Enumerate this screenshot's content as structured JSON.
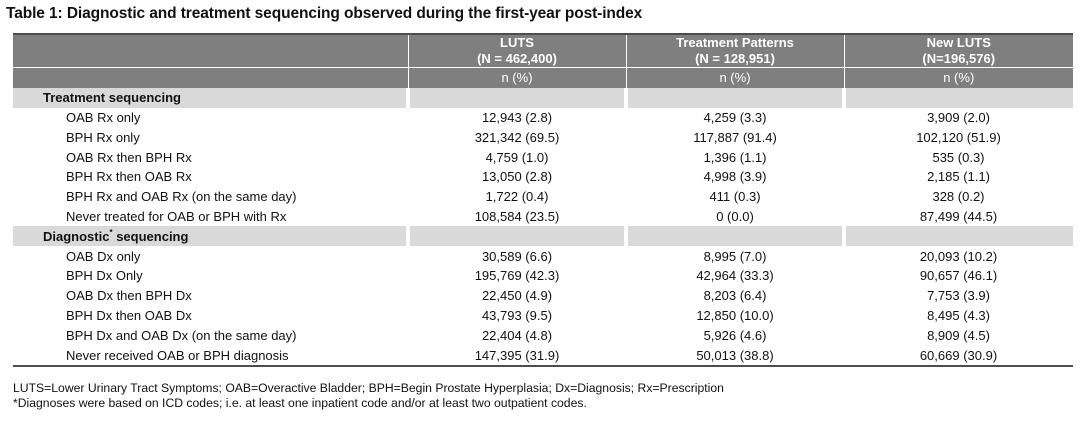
{
  "title": "Table 1: Diagnostic and treatment sequencing observed during the first-year post-index",
  "columns": [
    {
      "name": "LUTS",
      "n": "(N = 462,400)",
      "unit": "n (%)"
    },
    {
      "name": "Treatment Patterns",
      "n": "(N = 128,951)",
      "unit": "n (%)"
    },
    {
      "name": "New LUTS",
      "n": "(N=196,576)",
      "unit": "n (%)"
    }
  ],
  "sections": [
    {
      "title": "Treatment sequencing",
      "superscript": "",
      "title_rest": "",
      "rows": [
        {
          "label": "OAB Rx only",
          "values": [
            "12,943 (2.8)",
            "4,259 (3.3)",
            "3,909 (2.0)"
          ]
        },
        {
          "label": "BPH Rx only",
          "values": [
            "321,342 (69.5)",
            "117,887 (91.4)",
            "102,120 (51.9)"
          ]
        },
        {
          "label": "OAB Rx then BPH Rx",
          "values": [
            "4,759 (1.0)",
            "1,396 (1.1)",
            "535 (0.3)"
          ]
        },
        {
          "label": "BPH Rx then OAB Rx",
          "values": [
            "13,050 (2.8)",
            "4,998 (3.9)",
            "2,185 (1.1)"
          ]
        },
        {
          "label": "BPH Rx and OAB Rx (on the same day)",
          "values": [
            "1,722 (0.4)",
            "411 (0.3)",
            "328 (0.2)"
          ]
        },
        {
          "label": "Never treated for OAB or BPH with Rx",
          "values": [
            "108,584 (23.5)",
            "0 (0.0)",
            "87,499 (44.5)"
          ]
        }
      ]
    },
    {
      "title": "Diagnostic",
      "superscript": "*",
      "title_rest": " sequencing",
      "rows": [
        {
          "label": "OAB Dx only",
          "values": [
            "30,589 (6.6)",
            "8,995 (7.0)",
            "20,093 (10.2)"
          ]
        },
        {
          "label": "BPH Dx Only",
          "values": [
            "195,769 (42.3)",
            "42,964 (33.3)",
            "90,657 (46.1)"
          ]
        },
        {
          "label": "OAB Dx then BPH Dx",
          "values": [
            "22,450 (4.9)",
            "8,203 (6.4)",
            "7,753 (3.9)"
          ]
        },
        {
          "label": "BPH Dx then OAB Dx",
          "values": [
            "43,793 (9.5)",
            "12,850 (10.0)",
            "8,495 (4.3)"
          ]
        },
        {
          "label": "BPH Dx and OAB Dx (on the same day)",
          "values": [
            "22,404 (4.8)",
            "5,926 (4.6)",
            "8,909 (4.5)"
          ]
        },
        {
          "label": "Never received OAB or BPH diagnosis",
          "values": [
            "147,395 (31.9)",
            "50,013 (38.8)",
            "60,669 (30.9)"
          ]
        }
      ]
    }
  ],
  "footnotes": [
    "LUTS=Lower Urinary Tract Symptoms; OAB=Overactive Bladder; BPH=Begin Prostate Hyperplasia; Dx=Diagnosis; Rx=Prescription",
    "*Diagnoses were based on ICD codes; i.e. at least one inpatient code and/or at least two outpatient codes."
  ]
}
